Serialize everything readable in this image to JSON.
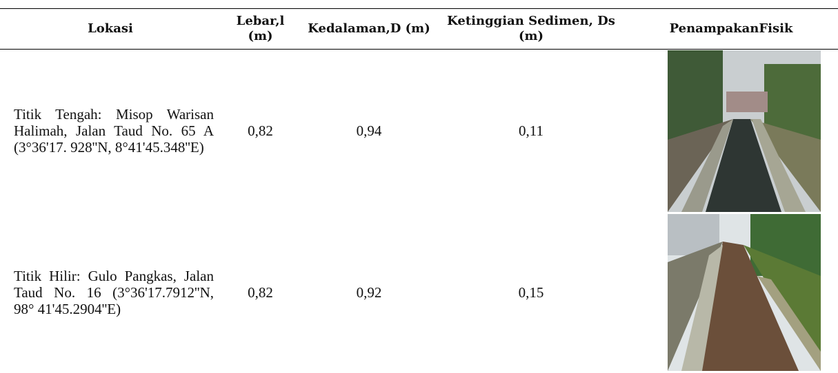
{
  "table": {
    "header": [
      "Lokasi",
      "Lebar,l (m)",
      "Kedalaman,D (m)",
      "Ketinggian Sedimen, Ds (m)",
      "PenampakanFisik"
    ],
    "rows": [
      [
        "Titik Tengah: Misop Warisan Halimah, Jalan Taud No. 65 A (3°36'17. 928''N, 8°41'45.348''E)",
        "0,82",
        "0,94",
        "0,11"
      ],
      [
        "Titik Hilir: Gulo Pangkas, Jalan Taud No. 16 (3°36'17.7912''N, 98° 41'45.2904''E)",
        "0,82",
        "0,92",
        "0,15"
      ]
    ]
  }
}
